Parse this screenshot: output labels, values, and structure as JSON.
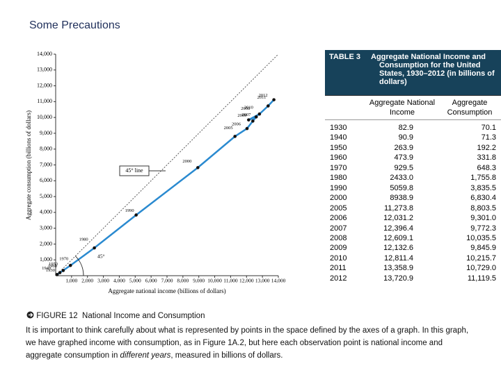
{
  "slide_title": "Some Precautions",
  "chart_data": {
    "type": "line",
    "x_label": "Aggregate national income (billions of dollars)",
    "y_label": "Aggregate consumption (billions of dollars)",
    "x": [
      82.9,
      90.9,
      263.9,
      473.9,
      929.5,
      2433.0,
      5059.8,
      8938.9,
      11273.8,
      12031.2,
      12396.4,
      12609.1,
      12132.6,
      12811.4,
      13358.9,
      13720.9
    ],
    "series": [
      {
        "values": [
          70.1,
          71.3,
          192.2,
          331.8,
          648.3,
          1755.8,
          3835.5,
          6830.4,
          8803.5,
          9301.0,
          9772.3,
          10035.5,
          9845.9,
          10215.7,
          10729.0,
          11119.5
        ],
        "color": "#2a8ad0"
      }
    ],
    "point_labels": [
      "1930",
      "1940",
      "1950",
      "1960",
      "1970",
      "1980",
      "1990",
      "2000",
      "2005",
      "2006",
      "2007",
      "2008",
      "2009",
      "2010",
      "2011",
      "2012"
    ],
    "annotations": [
      "45° line",
      "45°"
    ],
    "xlim": [
      0,
      14000
    ],
    "ylim": [
      0,
      14000
    ],
    "xticks": [
      {
        "value": 1000,
        "label": "1,000"
      },
      {
        "value": 2000,
        "label": "2,000"
      },
      {
        "value": 3000,
        "label": "3,000"
      },
      {
        "value": 4000,
        "label": "4,000"
      },
      {
        "value": 5000,
        "label": "5,000"
      },
      {
        "value": 6000,
        "label": "6,000"
      },
      {
        "value": 7000,
        "label": "7,000"
      },
      {
        "value": 8000,
        "label": "8,000"
      },
      {
        "value": 9000,
        "label": "9,000"
      },
      {
        "value": 10000,
        "label": "10,000"
      },
      {
        "value": 11000,
        "label": "11,000"
      },
      {
        "value": 12000,
        "label": "12,000"
      },
      {
        "value": 13000,
        "label": "13,000"
      },
      {
        "value": 14000,
        "label": "14,000"
      }
    ],
    "yticks": [
      {
        "value": 1000,
        "label": "1,000"
      },
      {
        "value": 2000,
        "label": "2,000"
      },
      {
        "value": 3000,
        "label": "3,000"
      },
      {
        "value": 4000,
        "label": "4,000"
      },
      {
        "value": 5000,
        "label": "5,000"
      },
      {
        "value": 6000,
        "label": "6,000"
      },
      {
        "value": 7000,
        "label": "7,000"
      },
      {
        "value": 8000,
        "label": "8,000"
      },
      {
        "value": 9000,
        "label": "9,000"
      },
      {
        "value": 10000,
        "label": "10,000"
      },
      {
        "value": 11000,
        "label": "11,000"
      },
      {
        "value": 12000,
        "label": "12,000"
      },
      {
        "value": 13000,
        "label": "13,000"
      },
      {
        "value": 14000,
        "label": "14,000"
      }
    ],
    "grid": false
  },
  "table": {
    "label": "TABLE 3",
    "title": "Aggregate National Income and Consumption for the United States, 1930–2012 (in billions of dollars)",
    "columns": [
      "Aggregate National Income",
      "Aggregate Consumption"
    ],
    "rows": [
      [
        "1930",
        "82.9",
        "70.1"
      ],
      [
        "1940",
        "90.9",
        "71.3"
      ],
      [
        "1950",
        "263.9",
        "192.2"
      ],
      [
        "1960",
        "473.9",
        "331.8"
      ],
      [
        "1970",
        "929.5",
        "648.3"
      ],
      [
        "1980",
        "2433.0",
        "1,755.8"
      ],
      [
        "1990",
        "5059.8",
        "3,835.5"
      ],
      [
        "2000",
        "8938.9",
        "6,830.4"
      ],
      [
        "2005",
        "11,273.8",
        "8,803.5"
      ],
      [
        "2006",
        "12,031.2",
        "9,301.0"
      ],
      [
        "2007",
        "12,396.4",
        "9,772.3"
      ],
      [
        "2008",
        "12,609.1",
        "10,035.5"
      ],
      [
        "2009",
        "12,132.6",
        "9,845.9"
      ],
      [
        "2010",
        "12,811.4",
        "10,215.7"
      ],
      [
        "2011",
        "13,358.9",
        "10,729.0"
      ],
      [
        "2012",
        "13,720.9",
        "11,119.5"
      ]
    ]
  },
  "figure": {
    "label": "FIGURE 12",
    "title": "National Income and Consumption",
    "text": [
      "It is important to think carefully about what is represented by points in the space defined by the axes of a graph. In this graph, we have graphed income with consumption, as in Figure 1A.2, but here each observation point is national income and aggregate consumption in ",
      "different years",
      ", measured in billions of dollars."
    ]
  }
}
